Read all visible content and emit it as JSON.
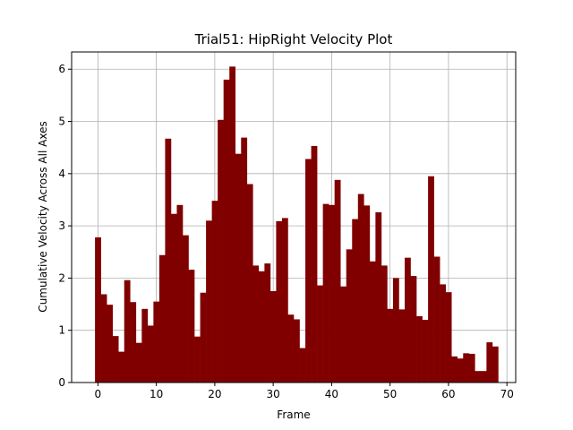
{
  "chart_data": {
    "type": "bar",
    "title": "Trial51: HipRight Velocity Plot",
    "xlabel": "Frame",
    "ylabel": "Cumulative Velocity Across All Axes",
    "xlim": [
      -4.5,
      71.5
    ],
    "ylim": [
      0,
      6.33
    ],
    "xticks": [
      0,
      10,
      20,
      30,
      40,
      50,
      60,
      70
    ],
    "yticks": [
      0,
      1,
      2,
      3,
      4,
      5,
      6
    ],
    "grid": true,
    "bar_color": "#800000",
    "x": [
      0,
      1,
      2,
      3,
      4,
      5,
      6,
      7,
      8,
      9,
      10,
      11,
      12,
      13,
      14,
      15,
      16,
      17,
      18,
      19,
      20,
      21,
      22,
      23,
      24,
      25,
      26,
      27,
      28,
      29,
      30,
      31,
      32,
      33,
      34,
      35,
      36,
      37,
      38,
      39,
      40,
      41,
      42,
      43,
      44,
      45,
      46,
      47,
      48,
      49,
      50,
      51,
      52,
      53,
      54,
      55,
      56,
      57,
      58,
      59,
      60,
      61,
      62,
      63,
      64,
      65,
      66,
      67,
      68
    ],
    "values": [
      2.78,
      1.69,
      1.49,
      0.89,
      0.59,
      1.96,
      1.54,
      0.76,
      1.41,
      1.09,
      1.55,
      2.44,
      4.67,
      3.23,
      3.4,
      2.82,
      2.16,
      0.88,
      1.72,
      3.1,
      3.48,
      5.03,
      5.8,
      6.05,
      4.38,
      4.69,
      3.8,
      2.24,
      2.13,
      2.28,
      1.75,
      3.09,
      3.15,
      1.3,
      1.21,
      0.66,
      4.28,
      4.53,
      1.86,
      3.42,
      3.4,
      3.88,
      1.84,
      2.55,
      3.13,
      3.61,
      3.39,
      2.32,
      3.26,
      2.24,
      1.41,
      2.0,
      1.4,
      2.39,
      2.04,
      1.27,
      1.2,
      3.95,
      2.41,
      1.88,
      1.73,
      0.5,
      0.46,
      0.56,
      0.55,
      0.22,
      0.22,
      0.77,
      0.69
    ]
  }
}
